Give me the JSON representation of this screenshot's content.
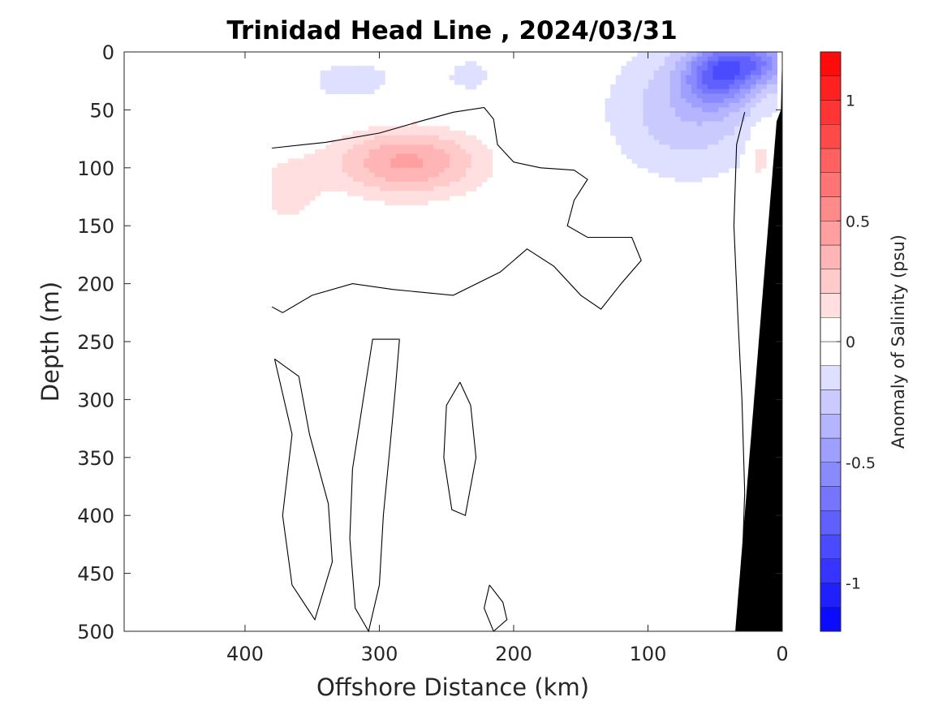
{
  "chart_data": {
    "type": "heatmap",
    "title": "Trinidad Head Line , 2024/03/31",
    "xlabel": "Offshore Distance (km)",
    "ylabel": "Depth (m)",
    "xlim": [
      490,
      0
    ],
    "ylim": [
      0,
      500
    ],
    "x_reversed": true,
    "y_reversed": true,
    "x_ticks": [
      "400",
      "300",
      "200",
      "100",
      "0"
    ],
    "y_ticks": [
      "0",
      "50",
      "100",
      "150",
      "200",
      "250",
      "300",
      "350",
      "400",
      "450",
      "500"
    ],
    "colorbar": {
      "label": "Anomaly of Salinity (psu)",
      "range": [
        -1.2,
        1.2
      ],
      "step": 0.1,
      "ticks": [
        "1",
        "0.5",
        "0",
        "-0.5",
        "-1"
      ],
      "colormap": "blue-white-red"
    },
    "zero_contour_color": "#000000",
    "bathymetry_color": "#000000",
    "data_coverage_km": [
      0,
      380
    ],
    "features": [
      {
        "name": "negative anomaly, surface offshore",
        "x_range": [
          260,
          380
        ],
        "depth_range": [
          0,
          65
        ],
        "value": -0.1
      },
      {
        "name": "positive anomaly core",
        "x_range": [
          240,
          340
        ],
        "depth_range": [
          80,
          110
        ],
        "value": 0.4
      },
      {
        "name": "positive anomaly body",
        "x_range": [
          200,
          380
        ],
        "depth_range": [
          60,
          170
        ],
        "value": 0.2
      },
      {
        "name": "negative anomaly, nearshore surface",
        "x_range": [
          5,
          150
        ],
        "depth_range": [
          0,
          130
        ],
        "value": -0.3
      },
      {
        "name": "negative anomaly core, coast",
        "x_range": [
          5,
          60
        ],
        "depth_range": [
          0,
          20
        ],
        "value": -0.8
      },
      {
        "name": "positive anomaly, near shelf",
        "x_range": [
          10,
          25
        ],
        "depth_range": [
          70,
          110
        ],
        "value": 0.2
      }
    ]
  }
}
